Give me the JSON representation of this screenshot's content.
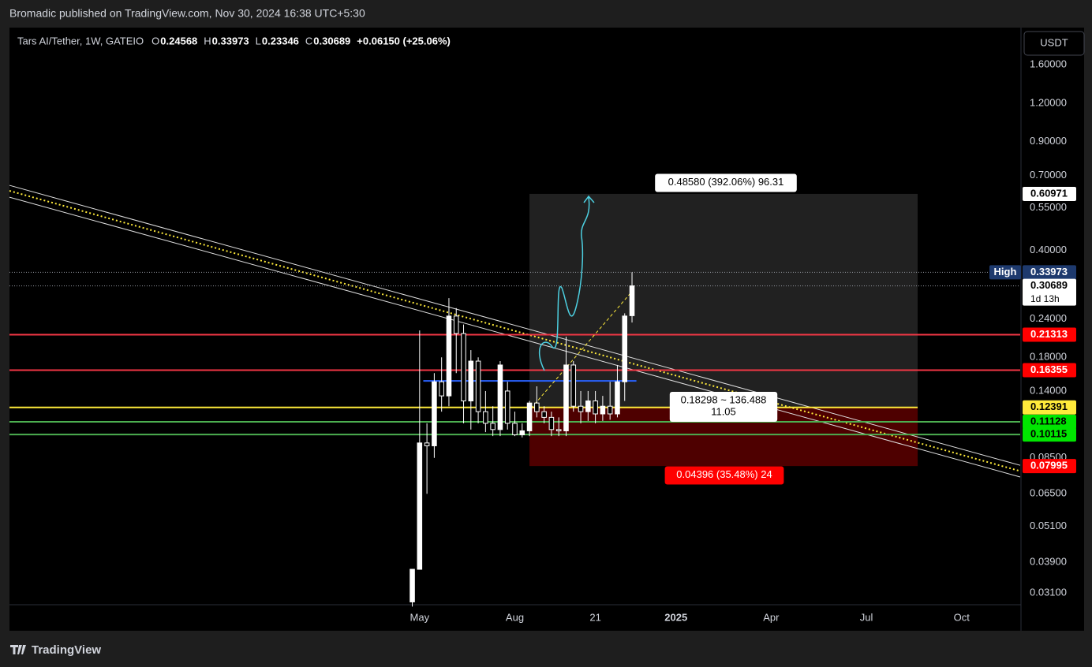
{
  "header": {
    "publisher": "Bromadic published on TradingView.com, Nov 30, 2024 16:38 UTC+5:30"
  },
  "legend": {
    "symbol": "Tars AI/Tether, 1W, GATEIO",
    "items": [
      {
        "key": "O",
        "value": "0.24568"
      },
      {
        "key": "H",
        "value": "0.33973"
      },
      {
        "key": "L",
        "value": "0.23346"
      },
      {
        "key": "C",
        "value": "0.30689"
      }
    ],
    "change": "+0.06150 (+25.06%)"
  },
  "footer": {
    "brand": "TradingView"
  },
  "chart_data": {
    "type": "candlestick",
    "currency": "USDT",
    "log_scale": true,
    "ylim": [
      0.0284,
      2.11
    ],
    "yticks": [
      {
        "value": 1.6,
        "label": "1.60000"
      },
      {
        "value": 1.2,
        "label": "1.20000"
      },
      {
        "value": 0.9,
        "label": "0.90000"
      },
      {
        "value": 0.7,
        "label": "0.70000"
      },
      {
        "value": 0.55,
        "label": "0.55000"
      },
      {
        "value": 0.4,
        "label": "0.40000"
      },
      {
        "value": 0.24,
        "label": "0.24000"
      },
      {
        "value": 0.18,
        "label": "0.18000"
      },
      {
        "value": 0.14,
        "label": "0.14000"
      },
      {
        "value": 0.085,
        "label": "0.08500"
      },
      {
        "value": 0.065,
        "label": "0.06500"
      },
      {
        "value": 0.051,
        "label": "0.05100"
      },
      {
        "value": 0.039,
        "label": "0.03900"
      },
      {
        "value": 0.031,
        "label": "0.03100"
      }
    ],
    "xlim": [
      -55,
      83
    ],
    "xticks": [
      {
        "value": 1,
        "label": "May"
      },
      {
        "value": 14,
        "label": "Aug"
      },
      {
        "value": 25,
        "label": "21"
      },
      {
        "value": 36,
        "label": "2025"
      },
      {
        "value": 49,
        "label": "Apr"
      },
      {
        "value": 62,
        "label": "Jul"
      },
      {
        "value": 75,
        "label": "Oct"
      }
    ],
    "x": [
      0,
      1,
      2,
      3,
      4,
      5,
      6,
      7,
      8,
      9,
      10,
      11,
      12,
      13,
      14,
      15,
      16,
      17,
      18,
      19,
      20,
      21,
      22,
      23,
      24,
      25,
      26,
      27,
      28,
      29,
      30
    ],
    "open": [
      0.029,
      0.037,
      0.095,
      0.093,
      0.15,
      0.135,
      0.245,
      0.215,
      0.13,
      0.175,
      0.12,
      0.11,
      0.105,
      0.14,
      0.11,
      0.101,
      0.104,
      0.128,
      0.12,
      0.115,
      0.105,
      0.104,
      0.17,
      0.125,
      0.12,
      0.13,
      0.118,
      0.125,
      0.118,
      0.15,
      0.24568
    ],
    "high": [
      0.037,
      0.22,
      0.11,
      0.16,
      0.18,
      0.28,
      0.26,
      0.23,
      0.19,
      0.18,
      0.14,
      0.125,
      0.175,
      0.15,
      0.12,
      0.11,
      0.13,
      0.145,
      0.125,
      0.12,
      0.115,
      0.21,
      0.175,
      0.14,
      0.14,
      0.14,
      0.135,
      0.15,
      0.17,
      0.25,
      0.33973
    ],
    "low": [
      0.028,
      0.037,
      0.065,
      0.085,
      0.12,
      0.125,
      0.16,
      0.11,
      0.105,
      0.11,
      0.103,
      0.1,
      0.1,
      0.105,
      0.1,
      0.099,
      0.1,
      0.115,
      0.11,
      0.1,
      0.1,
      0.1,
      0.12,
      0.11,
      0.112,
      0.11,
      0.112,
      0.113,
      0.115,
      0.13,
      0.23346
    ],
    "close": [
      0.037,
      0.095,
      0.093,
      0.15,
      0.135,
      0.245,
      0.215,
      0.13,
      0.175,
      0.12,
      0.11,
      0.105,
      0.17,
      0.11,
      0.101,
      0.104,
      0.128,
      0.12,
      0.115,
      0.105,
      0.104,
      0.17,
      0.125,
      0.12,
      0.13,
      0.118,
      0.125,
      0.118,
      0.15,
      0.245,
      0.30689
    ],
    "levels": [
      {
        "value": 0.21313,
        "color": "#f23645"
      },
      {
        "value": 0.16355,
        "color": "#f23645"
      },
      {
        "value": 0.12391,
        "color": "#ffeb3b"
      },
      {
        "value": 0.11128,
        "color": "#4caf50"
      },
      {
        "value": 0.10115,
        "color": "#4caf50"
      }
    ],
    "blue_level": {
      "value": 0.151,
      "x": [
        1.5,
        30.6
      ],
      "color": "#2962ff"
    },
    "high_marker": {
      "label": "High",
      "value": 0.33973
    },
    "last_price": {
      "value": 0.30689,
      "countdown": "1d 13h"
    },
    "position": {
      "x": [
        16,
        69
      ],
      "target": 0.60971,
      "entry": 0.12391,
      "stop": 0.07995,
      "target_label": "0.48580 (392.06%) 96.31",
      "info_label": [
        "0.18298 ~ 136.488",
        "11.05"
      ],
      "stop_label": "0.04396 (35.48%) 24"
    },
    "channel": {
      "x": [
        -55,
        83
      ],
      "upper": [
        0.65,
        0.0804
      ],
      "middle": [
        0.624,
        0.077
      ],
      "lower": [
        0.595,
        0.0737
      ]
    }
  }
}
